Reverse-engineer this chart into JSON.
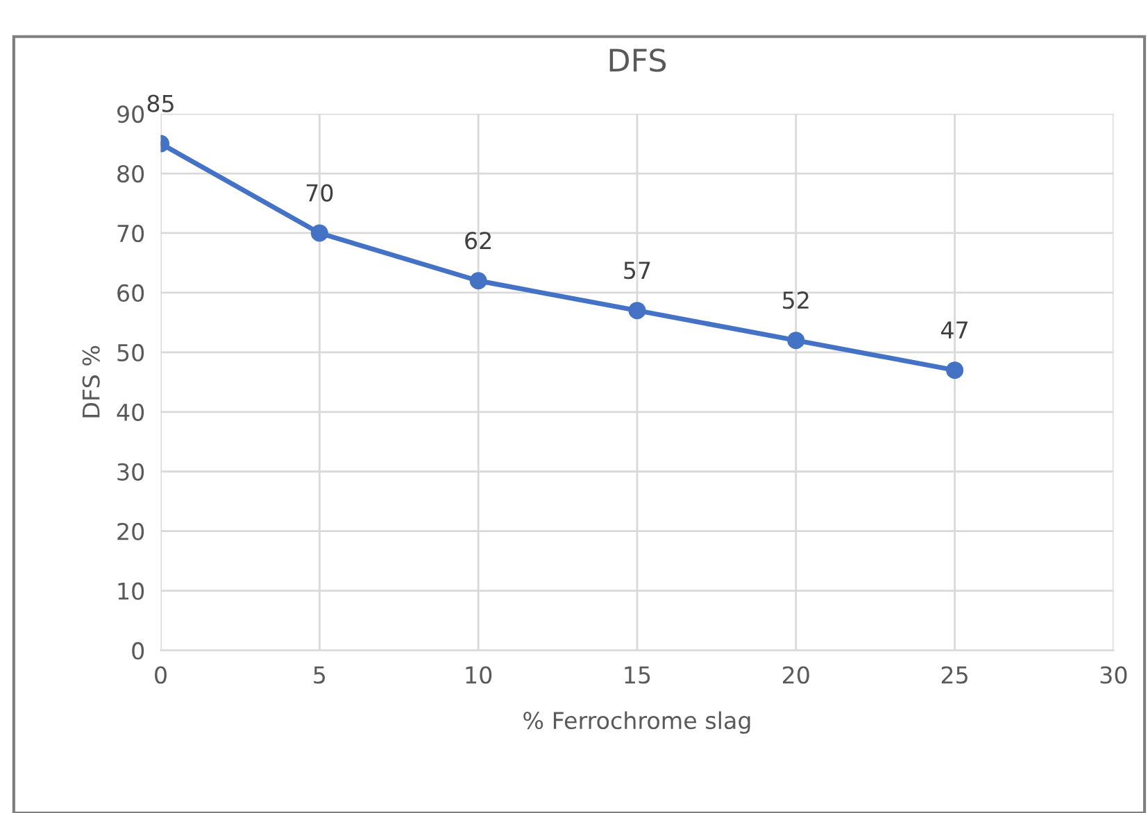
{
  "chart_data": {
    "type": "line",
    "title": "DFS",
    "xlabel": "% Ferrochrome slag",
    "ylabel": "DFS %",
    "x": [
      0,
      5,
      10,
      15,
      20,
      25
    ],
    "series": [
      {
        "color": "#4472c4",
        "values": [
          85,
          70,
          62,
          57,
          52,
          47
        ]
      }
    ],
    "xlim": [
      0,
      30
    ],
    "xticks": [
      0,
      5,
      10,
      15,
      20,
      25,
      30
    ],
    "ylim": [
      0,
      90
    ],
    "yticks": [
      0,
      10,
      20,
      30,
      40,
      50,
      60,
      70,
      80,
      90
    ],
    "grid": true,
    "marker": "circle",
    "line_style": "solid",
    "data_labels": true
  }
}
